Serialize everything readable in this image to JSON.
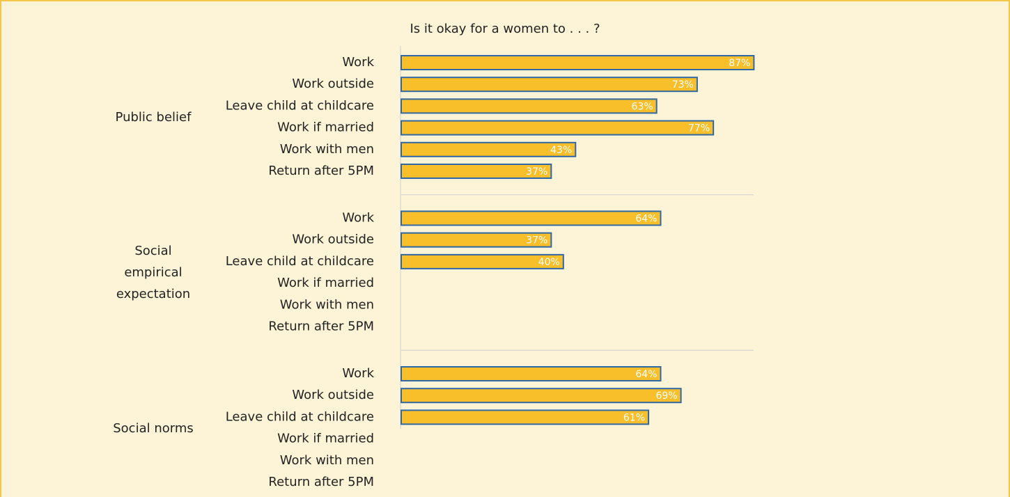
{
  "chart_data": {
    "type": "bar",
    "orientation": "horizontal",
    "title": "Is it okay for a women to . . . ?",
    "bar_color": "#f9bf2a",
    "bar_edge_color": "#2f68a6",
    "value_label_color": "#ffffff",
    "groups": [
      {
        "name": "Public belief",
        "categories": [
          "Work",
          "Work outside",
          "Leave child at childcare",
          "Work if married",
          "Work with men",
          "Return after 5PM"
        ],
        "values": [
          87,
          73,
          63,
          77,
          43,
          37
        ],
        "value_labels": [
          "87%",
          "73%",
          "63%",
          "77%",
          "43%",
          "37%"
        ]
      },
      {
        "name": "Social empirical expectation",
        "categories": [
          "Work",
          "Work outside",
          "Leave child at childcare",
          "Work if married",
          "Work with men",
          "Return after 5PM"
        ],
        "values": [
          64,
          37,
          40,
          null,
          null,
          null
        ],
        "value_labels": [
          "64%",
          "37%",
          "40%",
          null,
          null,
          null
        ]
      },
      {
        "name": "Social norms",
        "categories": [
          "Work",
          "Work outside",
          "Leave child at childcare",
          "Work if married",
          "Work with men",
          "Return after 5PM"
        ],
        "values": [
          64,
          69,
          61,
          null,
          null,
          null
        ],
        "value_labels": [
          "64%",
          "69%",
          "61%",
          null,
          null,
          null
        ]
      }
    ]
  }
}
